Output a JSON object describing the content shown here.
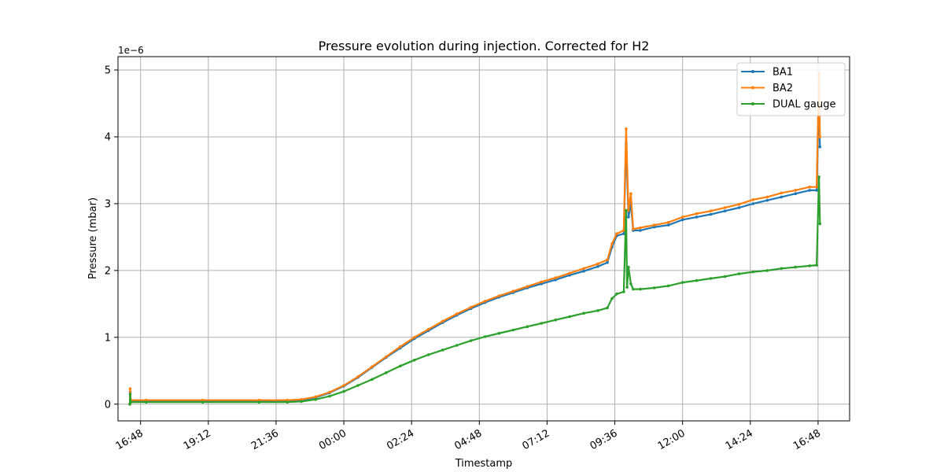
{
  "chart_data": {
    "type": "line",
    "title": "Pressure evolution during injection. Corrected for H2",
    "xlabel": "Timestamp",
    "ylabel": "Pressure (mbar)",
    "y_offset_text": "1e−6",
    "y_scale": 1e-06,
    "xlim": [
      "16:00",
      "17:55 (+1 day)"
    ],
    "ylim": [
      -0.25,
      5.2
    ],
    "x_ticks": [
      "16:48",
      "19:12",
      "21:36",
      "00:00",
      "02:24",
      "04:48",
      "07:12",
      "09:36",
      "12:00",
      "14:24",
      "16:48"
    ],
    "y_ticks": [
      "0",
      "1",
      "2",
      "3",
      "4",
      "5"
    ],
    "grid": true,
    "legend_position": "top-right",
    "series": [
      {
        "name": "BA1",
        "color": "#1f77b4",
        "points": [
          [
            "16:25",
            0.0
          ],
          [
            "16:26",
            0.18
          ],
          [
            "16:27",
            0.05
          ],
          [
            "17:00",
            0.05
          ],
          [
            "19:00",
            0.05
          ],
          [
            "21:00",
            0.05
          ],
          [
            "22:00",
            0.05
          ],
          [
            "22:30",
            0.06
          ],
          [
            "23:00",
            0.1
          ],
          [
            "23:30",
            0.17
          ],
          [
            "00:00",
            0.27
          ],
          [
            "00:30",
            0.4
          ],
          [
            "01:00",
            0.55
          ],
          [
            "01:30",
            0.7
          ],
          [
            "02:00",
            0.84
          ],
          [
            "02:30",
            0.98
          ],
          [
            "03:00",
            1.1
          ],
          [
            "03:30",
            1.22
          ],
          [
            "04:00",
            1.33
          ],
          [
            "04:30",
            1.43
          ],
          [
            "05:00",
            1.52
          ],
          [
            "05:30",
            1.6
          ],
          [
            "06:00",
            1.67
          ],
          [
            "06:30",
            1.74
          ],
          [
            "07:00",
            1.8
          ],
          [
            "07:30",
            1.86
          ],
          [
            "08:00",
            1.93
          ],
          [
            "08:30",
            1.99
          ],
          [
            "09:00",
            2.06
          ],
          [
            "09:20",
            2.12
          ],
          [
            "09:30",
            2.35
          ],
          [
            "09:40",
            2.52
          ],
          [
            "09:55",
            2.55
          ],
          [
            "10:00",
            3.9
          ],
          [
            "10:05",
            2.8
          ],
          [
            "10:10",
            3.0
          ],
          [
            "10:15",
            2.6
          ],
          [
            "10:30",
            2.6
          ],
          [
            "11:00",
            2.65
          ],
          [
            "11:30",
            2.68
          ],
          [
            "12:00",
            2.76
          ],
          [
            "12:30",
            2.8
          ],
          [
            "13:00",
            2.84
          ],
          [
            "13:30",
            2.89
          ],
          [
            "14:00",
            2.94
          ],
          [
            "14:30",
            3.0
          ],
          [
            "15:00",
            3.05
          ],
          [
            "15:30",
            3.1
          ],
          [
            "16:00",
            3.15
          ],
          [
            "16:30",
            3.2
          ],
          [
            "16:45",
            3.2
          ],
          [
            "16:50",
            4.6
          ],
          [
            "16:52",
            3.85
          ]
        ]
      },
      {
        "name": "BA2",
        "color": "#ff7f0e",
        "points": [
          [
            "16:25",
            0.0
          ],
          [
            "16:26",
            0.23
          ],
          [
            "16:27",
            0.06
          ],
          [
            "17:00",
            0.06
          ],
          [
            "19:00",
            0.06
          ],
          [
            "21:00",
            0.06
          ],
          [
            "22:00",
            0.06
          ],
          [
            "22:30",
            0.07
          ],
          [
            "23:00",
            0.11
          ],
          [
            "23:30",
            0.18
          ],
          [
            "00:00",
            0.28
          ],
          [
            "00:30",
            0.41
          ],
          [
            "01:00",
            0.56
          ],
          [
            "01:30",
            0.71
          ],
          [
            "02:00",
            0.86
          ],
          [
            "02:30",
            1.0
          ],
          [
            "03:00",
            1.12
          ],
          [
            "03:30",
            1.24
          ],
          [
            "04:00",
            1.35
          ],
          [
            "04:30",
            1.45
          ],
          [
            "05:00",
            1.54
          ],
          [
            "05:30",
            1.62
          ],
          [
            "06:00",
            1.69
          ],
          [
            "06:30",
            1.76
          ],
          [
            "07:00",
            1.83
          ],
          [
            "07:30",
            1.89
          ],
          [
            "08:00",
            1.96
          ],
          [
            "08:30",
            2.03
          ],
          [
            "09:00",
            2.1
          ],
          [
            "09:20",
            2.16
          ],
          [
            "09:30",
            2.4
          ],
          [
            "09:40",
            2.55
          ],
          [
            "09:55",
            2.6
          ],
          [
            "10:00",
            4.12
          ],
          [
            "10:05",
            2.9
          ],
          [
            "10:10",
            3.15
          ],
          [
            "10:15",
            2.62
          ],
          [
            "10:30",
            2.64
          ],
          [
            "11:00",
            2.68
          ],
          [
            "11:30",
            2.72
          ],
          [
            "12:00",
            2.8
          ],
          [
            "12:30",
            2.85
          ],
          [
            "13:00",
            2.89
          ],
          [
            "13:30",
            2.94
          ],
          [
            "14:00",
            2.99
          ],
          [
            "14:30",
            3.06
          ],
          [
            "15:00",
            3.1
          ],
          [
            "15:30",
            3.16
          ],
          [
            "16:00",
            3.2
          ],
          [
            "16:30",
            3.25
          ],
          [
            "16:45",
            3.25
          ],
          [
            "16:50",
            4.95
          ],
          [
            "16:52",
            4.0
          ]
        ]
      },
      {
        "name": "DUAL gauge",
        "color": "#2ca02c",
        "points": [
          [
            "16:25",
            0.0
          ],
          [
            "16:26",
            0.15
          ],
          [
            "16:27",
            0.03
          ],
          [
            "17:00",
            0.03
          ],
          [
            "19:00",
            0.03
          ],
          [
            "21:00",
            0.03
          ],
          [
            "22:00",
            0.03
          ],
          [
            "22:30",
            0.04
          ],
          [
            "23:00",
            0.07
          ],
          [
            "23:30",
            0.12
          ],
          [
            "00:00",
            0.19
          ],
          [
            "00:30",
            0.28
          ],
          [
            "01:00",
            0.37
          ],
          [
            "01:30",
            0.47
          ],
          [
            "02:00",
            0.57
          ],
          [
            "02:30",
            0.66
          ],
          [
            "03:00",
            0.74
          ],
          [
            "03:30",
            0.81
          ],
          [
            "04:00",
            0.88
          ],
          [
            "04:30",
            0.95
          ],
          [
            "05:00",
            1.01
          ],
          [
            "05:30",
            1.06
          ],
          [
            "06:00",
            1.11
          ],
          [
            "06:30",
            1.16
          ],
          [
            "07:00",
            1.21
          ],
          [
            "07:30",
            1.26
          ],
          [
            "08:00",
            1.31
          ],
          [
            "08:30",
            1.36
          ],
          [
            "09:00",
            1.4
          ],
          [
            "09:20",
            1.44
          ],
          [
            "09:30",
            1.58
          ],
          [
            "09:40",
            1.65
          ],
          [
            "09:55",
            1.68
          ],
          [
            "10:00",
            2.9
          ],
          [
            "10:02",
            1.75
          ],
          [
            "10:05",
            2.05
          ],
          [
            "10:10",
            1.8
          ],
          [
            "10:15",
            1.72
          ],
          [
            "10:30",
            1.72
          ],
          [
            "11:00",
            1.74
          ],
          [
            "11:30",
            1.77
          ],
          [
            "12:00",
            1.82
          ],
          [
            "12:30",
            1.85
          ],
          [
            "13:00",
            1.88
          ],
          [
            "13:30",
            1.91
          ],
          [
            "14:00",
            1.95
          ],
          [
            "14:30",
            1.98
          ],
          [
            "15:00",
            2.0
          ],
          [
            "15:30",
            2.03
          ],
          [
            "16:00",
            2.05
          ],
          [
            "16:30",
            2.07
          ],
          [
            "16:45",
            2.08
          ],
          [
            "16:50",
            3.4
          ],
          [
            "16:52",
            2.7
          ]
        ]
      }
    ]
  }
}
